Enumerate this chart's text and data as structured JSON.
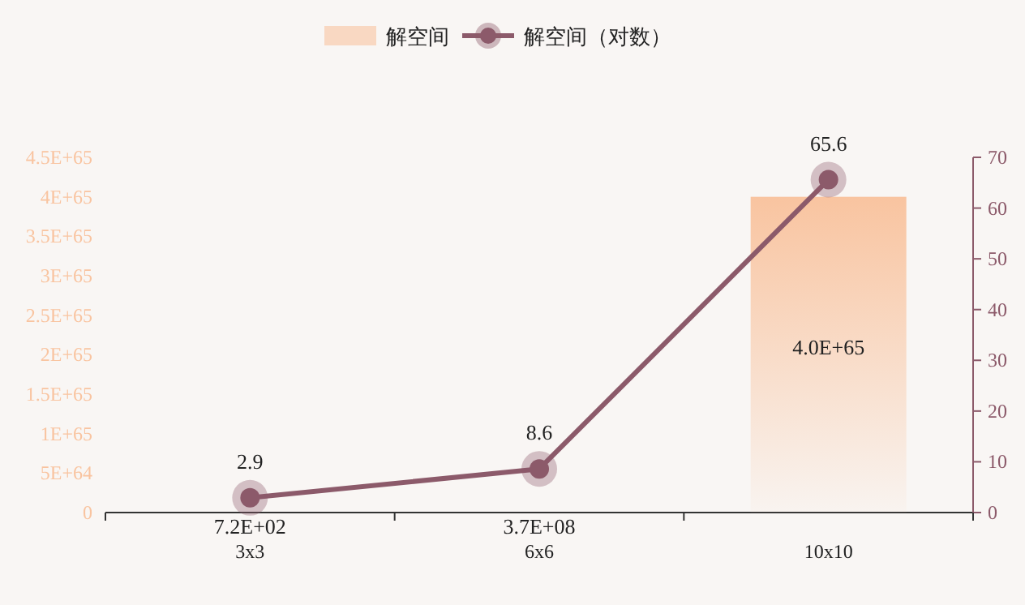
{
  "chart_data": {
    "type": "bar",
    "categories": [
      "3x3",
      "6x6",
      "10x10"
    ],
    "legend": "top",
    "grid": false,
    "series": [
      {
        "name": "解空间",
        "color": "#f9c4a0",
        "values": [
          720,
          370000000.0,
          4e+65
        ],
        "value_labels": [
          "7.2E+02",
          "3.7E+08",
          "4.0E+65"
        ]
      },
      {
        "name": "解空间（对数）",
        "type": "line",
        "axis": "y2",
        "color": "#8c5a6a",
        "marker": "circle",
        "data_labels": true,
        "values": [
          2.9,
          8.6,
          65.6
        ]
      }
    ],
    "ylim": [
      0,
      4.5e+65
    ],
    "yticks": [
      0,
      {
        "value": 5e+64,
        "label": "5E+64"
      },
      {
        "value": 1e+65,
        "label": "1E+65"
      },
      {
        "value": 1.5e+65,
        "label": "1.5E+65"
      },
      {
        "value": 2e+65,
        "label": "2E+65"
      },
      {
        "value": 2.5e+65,
        "label": "2.5E+65"
      },
      {
        "value": 3e+65,
        "label": "3E+65"
      },
      {
        "value": 3.5e+65,
        "label": "3.5E+65"
      },
      {
        "value": 4e+65,
        "label": "4E+65"
      },
      {
        "value": 4.5e+65,
        "label": "4.5E+65"
      }
    ],
    "y2lim": [
      0,
      70
    ],
    "y2ticks": [
      0,
      10,
      20,
      30,
      40,
      50,
      60,
      70
    ]
  }
}
